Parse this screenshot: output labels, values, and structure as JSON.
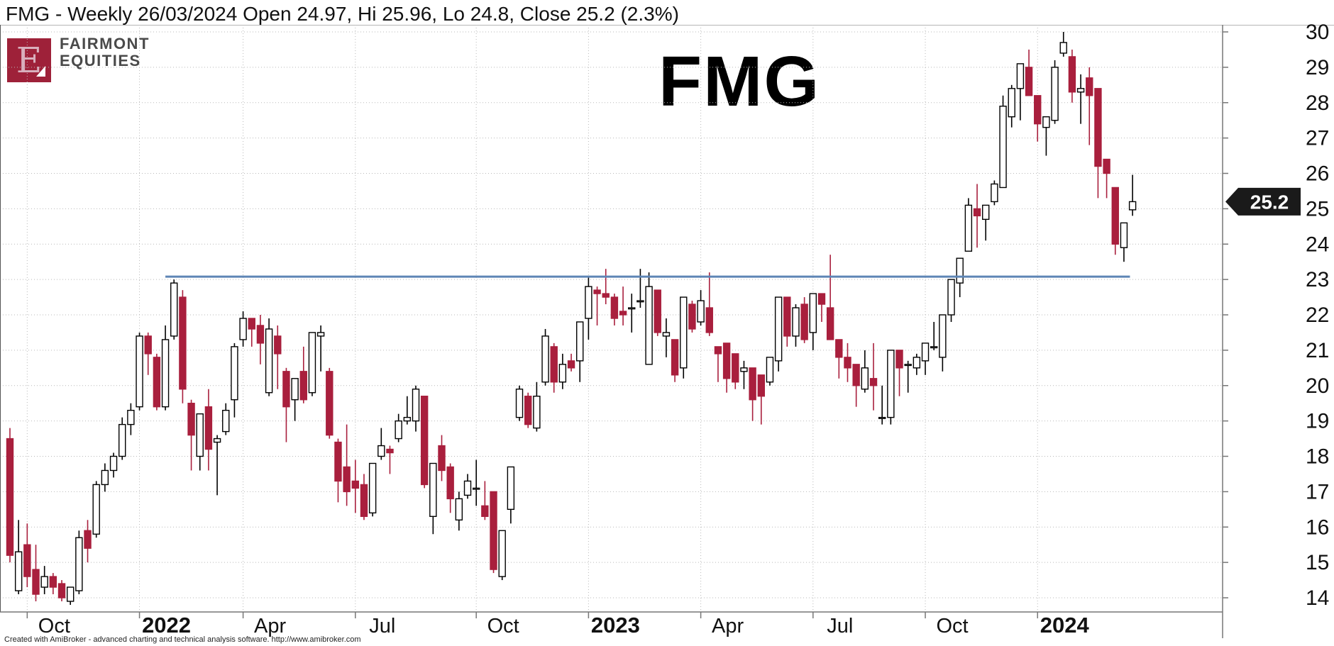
{
  "title": "FMG - Weekly 26/03/2024 Open 24.97, Hi 25.96, Lo 24.8, Close 25.2 (2.3%)",
  "logo": {
    "letter": "E",
    "line1": "FAIRMONT",
    "line2": "EQUITIES"
  },
  "watermark": "FMG",
  "footer": "Created with AmiBroker - advanced charting and technical analysis software. http://www.amibroker.com",
  "price_callout": {
    "value": "25.2",
    "price": 25.2,
    "bg": "#1a1a1a",
    "fg": "#ffffff"
  },
  "colors": {
    "up_fill": "#ffffff",
    "up_stroke": "#000000",
    "down": "#a91f3d",
    "grid": "#b9b9b9",
    "axis": "#777777",
    "resistance": "#5e85b5",
    "logo_red": "#9e2139"
  },
  "chart_data": {
    "type": "candlestick",
    "symbol": "FMG",
    "interval": "Weekly",
    "title": "FMG - Weekly 26/03/2024 Open 24.97, Hi 25.96, Lo 24.8, Close 25.2 (2.3%)",
    "last_bar": {
      "date": "26/03/2024",
      "open": 24.97,
      "high": 25.96,
      "low": 24.8,
      "close": 25.2,
      "change": "2.3%"
    },
    "ylim": [
      13.6,
      30.2
    ],
    "y_ticks": {
      "min": 14,
      "max": 30,
      "step": 1
    },
    "x_ticks": [
      {
        "week": 2,
        "label": "Oct",
        "bold": false
      },
      {
        "week": 15,
        "label": "2022",
        "bold": true
      },
      {
        "week": 27,
        "label": "Apr",
        "bold": false
      },
      {
        "week": 40,
        "label": "Jul",
        "bold": false
      },
      {
        "week": 54,
        "label": "Oct",
        "bold": false
      },
      {
        "week": 67,
        "label": "2023",
        "bold": true
      },
      {
        "week": 80,
        "label": "Apr",
        "bold": false
      },
      {
        "week": 93,
        "label": "Jul",
        "bold": false
      },
      {
        "week": 106,
        "label": "Oct",
        "bold": false
      },
      {
        "week": 119,
        "label": "2024",
        "bold": true
      }
    ],
    "resistance_line": {
      "price": 23.08,
      "from_week": 18,
      "to_week": 129.7
    },
    "candles": [
      [
        18.5,
        18.8,
        15.0,
        15.2
      ],
      [
        14.2,
        16.2,
        14.1,
        15.3
      ],
      [
        15.5,
        16.1,
        14.3,
        14.6
      ],
      [
        14.8,
        15.5,
        13.9,
        14.1
      ],
      [
        14.3,
        14.9,
        14.1,
        14.6
      ],
      [
        14.6,
        14.7,
        14.1,
        14.3
      ],
      [
        14.4,
        14.5,
        13.9,
        14.0
      ],
      [
        13.9,
        14.3,
        13.8,
        14.3
      ],
      [
        14.2,
        15.9,
        14.1,
        15.7
      ],
      [
        15.9,
        16.2,
        15.0,
        15.4
      ],
      [
        15.8,
        17.3,
        15.7,
        17.2
      ],
      [
        17.2,
        17.8,
        17.0,
        17.6
      ],
      [
        17.6,
        18.1,
        17.4,
        18.0
      ],
      [
        18.0,
        19.1,
        17.9,
        18.9
      ],
      [
        18.9,
        19.5,
        18.6,
        19.3
      ],
      [
        19.4,
        21.5,
        19.3,
        21.4
      ],
      [
        21.4,
        21.5,
        20.3,
        20.9
      ],
      [
        20.8,
        20.9,
        19.3,
        19.4
      ],
      [
        19.4,
        21.7,
        19.3,
        21.3
      ],
      [
        21.4,
        23.0,
        21.3,
        22.9
      ],
      [
        22.5,
        22.7,
        19.5,
        19.9
      ],
      [
        19.5,
        19.6,
        17.6,
        18.6
      ],
      [
        18.0,
        19.2,
        17.6,
        19.2
      ],
      [
        19.4,
        19.9,
        17.6,
        18.2
      ],
      [
        18.4,
        18.6,
        16.9,
        18.5
      ],
      [
        18.7,
        19.5,
        18.6,
        19.3
      ],
      [
        19.6,
        21.2,
        19.1,
        21.1
      ],
      [
        21.3,
        22.1,
        21.1,
        21.9
      ],
      [
        21.9,
        21.9,
        21.1,
        21.6
      ],
      [
        21.7,
        22.0,
        20.6,
        21.2
      ],
      [
        19.8,
        21.9,
        19.7,
        21.6
      ],
      [
        21.4,
        21.7,
        19.9,
        20.9
      ],
      [
        20.4,
        20.5,
        18.4,
        19.4
      ],
      [
        19.6,
        20.2,
        19.0,
        20.2
      ],
      [
        20.4,
        21.1,
        19.5,
        19.6
      ],
      [
        19.8,
        21.5,
        19.7,
        21.5
      ],
      [
        21.4,
        21.7,
        20.4,
        21.5
      ],
      [
        20.4,
        20.5,
        18.5,
        18.6
      ],
      [
        18.4,
        18.5,
        16.7,
        17.3
      ],
      [
        17.7,
        18.9,
        16.6,
        17.0
      ],
      [
        17.3,
        17.9,
        16.4,
        17.1
      ],
      [
        17.2,
        17.5,
        16.2,
        16.3
      ],
      [
        16.4,
        17.8,
        16.3,
        17.8
      ],
      [
        18.0,
        18.8,
        17.9,
        18.3
      ],
      [
        18.2,
        18.3,
        17.5,
        18.1
      ],
      [
        18.5,
        19.2,
        18.4,
        19.0
      ],
      [
        19.0,
        19.7,
        18.9,
        19.1
      ],
      [
        19.0,
        20.0,
        18.7,
        19.9
      ],
      [
        19.7,
        19.7,
        17.1,
        17.2
      ],
      [
        16.3,
        17.8,
        15.8,
        17.8
      ],
      [
        18.3,
        18.6,
        17.3,
        17.6
      ],
      [
        17.7,
        17.8,
        16.4,
        16.8
      ],
      [
        16.2,
        17.0,
        15.9,
        16.8
      ],
      [
        16.9,
        17.5,
        16.8,
        17.3
      ],
      [
        17.1,
        17.9,
        16.6,
        17.1
      ],
      [
        16.6,
        17.3,
        16.2,
        16.3
      ],
      [
        17.0,
        17.0,
        14.7,
        14.8
      ],
      [
        14.6,
        15.9,
        14.5,
        15.9
      ],
      [
        16.5,
        17.7,
        16.1,
        17.7
      ],
      [
        19.1,
        20.0,
        19.0,
        19.9
      ],
      [
        19.7,
        19.8,
        18.8,
        18.9
      ],
      [
        18.8,
        20.1,
        18.7,
        19.7
      ],
      [
        20.1,
        21.6,
        20.0,
        21.4
      ],
      [
        21.1,
        21.2,
        19.8,
        20.1
      ],
      [
        20.1,
        20.9,
        19.9,
        20.6
      ],
      [
        20.7,
        20.9,
        20.4,
        20.5
      ],
      [
        20.7,
        21.8,
        20.1,
        21.8
      ],
      [
        21.9,
        23.1,
        21.3,
        22.8
      ],
      [
        22.7,
        22.8,
        21.7,
        22.6
      ],
      [
        22.6,
        23.3,
        22.3,
        22.5
      ],
      [
        22.5,
        22.6,
        21.7,
        21.9
      ],
      [
        22.1,
        22.8,
        21.7,
        22.0
      ],
      [
        22.2,
        22.6,
        21.5,
        22.2
      ],
      [
        22.4,
        23.3,
        22.2,
        22.4
      ],
      [
        20.6,
        23.2,
        20.6,
        22.8
      ],
      [
        22.7,
        22.7,
        21.4,
        21.5
      ],
      [
        21.4,
        21.9,
        20.8,
        21.5
      ],
      [
        21.3,
        21.3,
        20.1,
        20.3
      ],
      [
        20.5,
        22.5,
        20.2,
        22.5
      ],
      [
        22.3,
        22.4,
        21.5,
        21.6
      ],
      [
        21.8,
        22.7,
        21.7,
        22.4
      ],
      [
        22.2,
        23.2,
        21.4,
        21.5
      ],
      [
        21.1,
        21.1,
        20.1,
        20.9
      ],
      [
        21.2,
        21.2,
        19.8,
        20.2
      ],
      [
        20.9,
        20.9,
        19.9,
        20.1
      ],
      [
        20.4,
        20.7,
        19.9,
        20.5
      ],
      [
        20.5,
        20.5,
        19.0,
        19.6
      ],
      [
        20.3,
        20.3,
        18.9,
        19.7
      ],
      [
        20.1,
        20.8,
        20.0,
        20.8
      ],
      [
        20.7,
        22.5,
        20.4,
        22.5
      ],
      [
        22.5,
        22.5,
        21.1,
        21.4
      ],
      [
        21.4,
        22.3,
        21.1,
        22.2
      ],
      [
        22.3,
        22.5,
        21.2,
        21.3
      ],
      [
        21.5,
        22.6,
        21.0,
        22.6
      ],
      [
        22.6,
        22.6,
        21.8,
        22.3
      ],
      [
        22.2,
        23.7,
        21.3,
        21.3
      ],
      [
        21.3,
        21.3,
        20.2,
        20.8
      ],
      [
        20.8,
        21.2,
        20.1,
        20.5
      ],
      [
        20.6,
        20.6,
        19.4,
        20.0
      ],
      [
        19.9,
        21.0,
        19.8,
        20.5
      ],
      [
        20.2,
        21.2,
        19.3,
        20.0
      ],
      [
        19.1,
        20.0,
        18.9,
        19.1
      ],
      [
        19.1,
        21.0,
        18.9,
        21.0
      ],
      [
        21.0,
        21.0,
        19.7,
        20.5
      ],
      [
        20.6,
        20.7,
        19.8,
        20.6
      ],
      [
        20.5,
        20.9,
        20.3,
        20.8
      ],
      [
        20.7,
        21.2,
        20.3,
        21.2
      ],
      [
        21.1,
        21.8,
        21.0,
        21.1
      ],
      [
        20.8,
        22.0,
        20.4,
        22.0
      ],
      [
        22.0,
        23.0,
        21.8,
        23.0
      ],
      [
        22.9,
        23.6,
        22.5,
        23.6
      ],
      [
        23.8,
        25.3,
        23.8,
        25.1
      ],
      [
        25.0,
        25.7,
        23.9,
        24.8
      ],
      [
        24.7,
        25.1,
        24.1,
        25.1
      ],
      [
        25.2,
        25.8,
        25.1,
        25.7
      ],
      [
        25.6,
        28.2,
        25.6,
        27.9
      ],
      [
        27.6,
        28.5,
        27.3,
        28.4
      ],
      [
        28.4,
        29.1,
        27.5,
        29.1
      ],
      [
        29.0,
        29.5,
        28.2,
        28.2
      ],
      [
        28.2,
        28.2,
        26.9,
        27.4
      ],
      [
        27.3,
        27.6,
        26.5,
        27.6
      ],
      [
        27.5,
        29.2,
        27.4,
        29.0
      ],
      [
        29.4,
        30.0,
        29.3,
        29.7
      ],
      [
        29.3,
        29.5,
        28.0,
        28.3
      ],
      [
        28.3,
        28.8,
        27.4,
        28.4
      ],
      [
        28.7,
        29.0,
        26.8,
        28.2
      ],
      [
        28.4,
        28.4,
        25.3,
        26.2
      ],
      [
        26.4,
        26.4,
        25.3,
        26.0
      ],
      [
        25.6,
        25.6,
        23.7,
        24.0
      ],
      [
        23.9,
        24.6,
        23.5,
        24.6
      ],
      [
        24.97,
        25.96,
        24.8,
        25.2
      ]
    ]
  }
}
